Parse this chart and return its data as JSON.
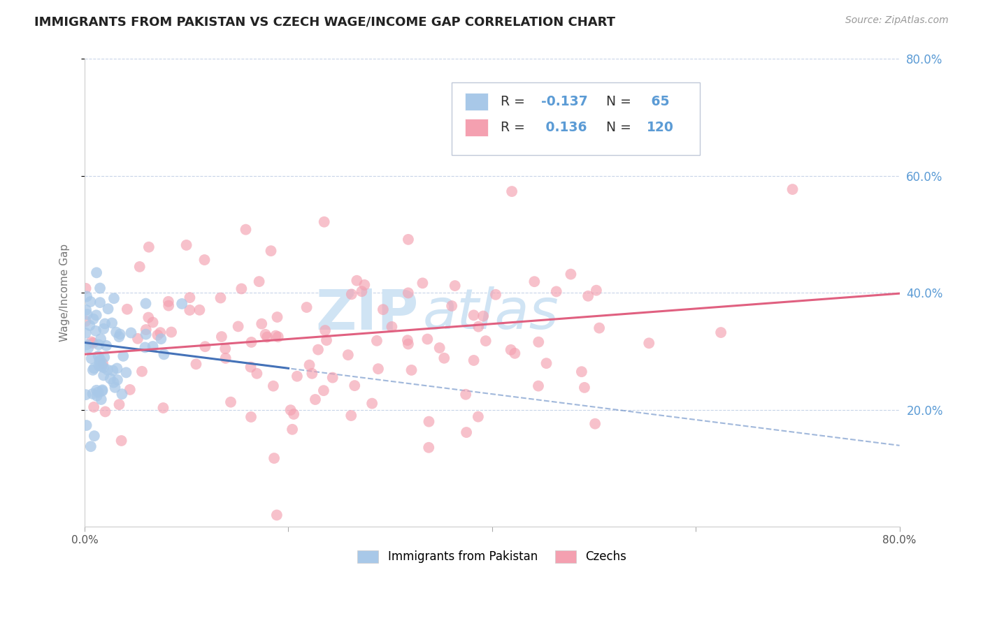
{
  "title": "IMMIGRANTS FROM PAKISTAN VS CZECH WAGE/INCOME GAP CORRELATION CHART",
  "source": "Source: ZipAtlas.com",
  "ylabel": "Wage/Income Gap",
  "xlim": [
    0.0,
    0.8
  ],
  "ylim": [
    0.0,
    0.8
  ],
  "blue_R": -0.137,
  "blue_N": 65,
  "pink_R": 0.136,
  "pink_N": 120,
  "blue_color": "#a8c8e8",
  "pink_color": "#f4a0b0",
  "blue_line_color": "#4472b8",
  "pink_line_color": "#e06080",
  "right_axis_color": "#5b9bd5",
  "legend_text_color": "#5b9bd5",
  "watermark_zip": "ZIP",
  "watermark_atlas": "atlas",
  "watermark_color": "#d0e4f4",
  "background_color": "#ffffff",
  "grid_color": "#c8d4e8",
  "title_fontsize": 13,
  "seed": 7,
  "blue_x_params": {
    "scale": 0.025,
    "clip_max": 0.18
  },
  "blue_y_params": {
    "mean": 0.305,
    "std": 0.065
  },
  "pink_x_params": {
    "mean": 0.22,
    "std": 0.175,
    "clip_max": 0.76
  },
  "pink_y_params": {
    "mean": 0.335,
    "std": 0.095
  }
}
